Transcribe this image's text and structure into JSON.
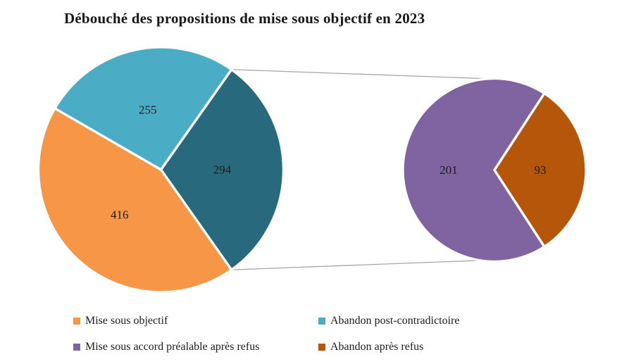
{
  "title": "Débouché des propositions de mise sous objectif en 2023",
  "chart_data": {
    "type": "pie",
    "subtype": "pie-of-pie",
    "title": "Débouché des propositions de mise sous objectif en 2023",
    "legend_position": "bottom",
    "background": "#FFFFFF",
    "connector_line_color": "#A6A6A6",
    "slice_border_color": "#FFFFFF",
    "main_pie": {
      "total": 965,
      "slices": [
        {
          "name": "mise-sous-objectif",
          "label": "Mise sous objectif",
          "value": 416,
          "color": "#F79646"
        },
        {
          "name": "abandon-post-contradictoire",
          "label": "Abandon post-contradictoire",
          "value": 255,
          "color": "#4BACC6"
        },
        {
          "name": "other-group",
          "label": "",
          "value": 294,
          "color": "#29697E"
        }
      ]
    },
    "secondary_pie": {
      "total": 294,
      "slices": [
        {
          "name": "mise-sous-accord-prealable-apres-refus",
          "label": "Mise sous accord préalable après refus",
          "value": 201,
          "color": "#8064A2"
        },
        {
          "name": "abandon-apres-refus",
          "label": "Abandon après refus",
          "value": 93,
          "color": "#B5560A"
        }
      ]
    }
  },
  "legend": {
    "items": [
      {
        "label": "Mise sous objectif",
        "color": "#F79646"
      },
      {
        "label": "Abandon post-contradictoire",
        "color": "#4BACC6"
      },
      {
        "label": "Mise sous accord préalable après refus",
        "color": "#8064A2"
      },
      {
        "label": "Abandon après refus",
        "color": "#B5560A"
      }
    ]
  }
}
